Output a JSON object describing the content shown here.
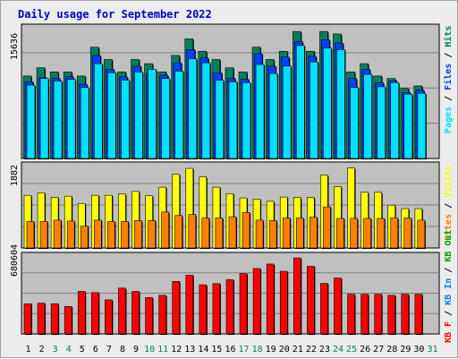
{
  "title": "Daily usage for September 2022",
  "colors": {
    "title": "#0000cc",
    "hits": "#00805c",
    "files": "#0040ff",
    "pages": "#00e0ff",
    "visits": "#ffff00",
    "sites": "#ff8000",
    "kbin": "#0080ff",
    "kbout": "#00a000",
    "kbf": "#ff0000",
    "panel": "#c0c0c0",
    "grid": "#808080"
  },
  "chart_data": [
    {
      "type": "bar",
      "panel": "hits-files-pages",
      "ymax": 15636,
      "ymax_label": "15636",
      "legend": [
        "Pages",
        "Files",
        "Hits"
      ],
      "series": [
        {
          "name": "Hits",
          "values": [
            10000,
            11000,
            10500,
            10500,
            10000,
            13500,
            12000,
            10500,
            12000,
            11500,
            10500,
            12500,
            14500,
            13000,
            12000,
            11000,
            10500,
            13500,
            12000,
            13000,
            15400,
            13000,
            15400,
            15100,
            10500,
            11500,
            10000,
            9700,
            8500,
            8800
          ]
        },
        {
          "name": "Files",
          "values": [
            9300,
            9800,
            9700,
            9900,
            9000,
            12500,
            10800,
            9900,
            11200,
            10300,
            10100,
            11600,
            13200,
            12200,
            10400,
            9700,
            9600,
            12700,
            11200,
            12300,
            14200,
            12400,
            14400,
            14000,
            9700,
            10800,
            9200,
            9400,
            8000,
            8300
          ]
        },
        {
          "name": "Pages",
          "values": [
            8900,
            9700,
            9400,
            9600,
            8600,
            11500,
            10400,
            9500,
            10500,
            10800,
            9700,
            10600,
            12100,
            11600,
            9500,
            9300,
            9200,
            11400,
            10300,
            11200,
            13700,
            11700,
            13400,
            13200,
            8600,
            10200,
            8700,
            9200,
            7800,
            7900
          ]
        }
      ]
    },
    {
      "type": "bar",
      "panel": "visits-sites",
      "ymax": 1882,
      "ymax_label": "1882",
      "legend": [
        "Sites",
        "Visits"
      ],
      "series": [
        {
          "name": "Visits",
          "values": [
            1230,
            1290,
            1180,
            1210,
            1040,
            1230,
            1230,
            1260,
            1320,
            1220,
            1420,
            1720,
            1860,
            1660,
            1420,
            1270,
            1170,
            1140,
            1090,
            1190,
            1180,
            1180,
            1700,
            1430,
            1870,
            1300,
            1300,
            1000,
            920,
            920
          ]
        },
        {
          "name": "Sites",
          "values": [
            620,
            620,
            650,
            630,
            510,
            650,
            620,
            620,
            640,
            640,
            840,
            760,
            780,
            700,
            700,
            730,
            830,
            650,
            640,
            700,
            700,
            720,
            960,
            690,
            690,
            690,
            690,
            700,
            700,
            650
          ]
        }
      ]
    },
    {
      "type": "bar",
      "panel": "kbytes",
      "ymax": 680604,
      "ymax_label": "680604",
      "legend": [
        "KB F",
        "KB In",
        "KB Out"
      ],
      "series": [
        {
          "name": "KB F",
          "values": [
            270000,
            275000,
            270000,
            246000,
            380000,
            370000,
            305000,
            410000,
            380000,
            325000,
            345000,
            470000,
            525000,
            440000,
            450000,
            485000,
            540000,
            585000,
            625000,
            560000,
            680000,
            605000,
            452000,
            500000,
            355000,
            355000,
            355000,
            345000,
            355000,
            355000
          ]
        }
      ]
    }
  ],
  "days": [
    "1",
    "2",
    "3",
    "4",
    "5",
    "6",
    "7",
    "8",
    "9",
    "10",
    "11",
    "12",
    "13",
    "14",
    "15",
    "16",
    "17",
    "18",
    "19",
    "20",
    "21",
    "22",
    "23",
    "24",
    "25",
    "26",
    "27",
    "28",
    "29",
    "30",
    "31"
  ],
  "weekend_days": [
    3,
    4,
    10,
    11,
    17,
    18,
    24,
    25,
    31
  ]
}
